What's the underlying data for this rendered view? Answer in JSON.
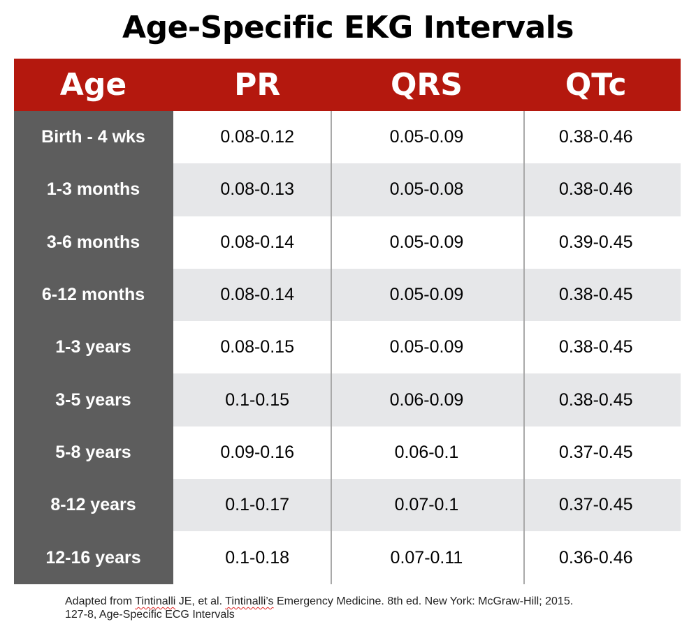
{
  "title": "Age-Specific EKG Intervals",
  "colors": {
    "header_bg": "#b4180e",
    "age_column_bg": "#5d5d5d",
    "alt_row_bg": "#e6e7e9",
    "divider": "#a9a9a9"
  },
  "table": {
    "headers": [
      "Age",
      "PR",
      "QRS",
      "QTc"
    ],
    "rows": [
      {
        "age": "Birth - 4 wks",
        "pr": "0.08-0.12",
        "qrs": "0.05-0.09",
        "qtc": "0.38-0.46"
      },
      {
        "age": "1-3 months",
        "pr": "0.08-0.13",
        "qrs": "0.05-0.08",
        "qtc": "0.38-0.46"
      },
      {
        "age": "3-6 months",
        "pr": "0.08-0.14",
        "qrs": "0.05-0.09",
        "qtc": "0.39-0.45"
      },
      {
        "age": "6-12 months",
        "pr": "0.08-0.14",
        "qrs": "0.05-0.09",
        "qtc": "0.38-0.45"
      },
      {
        "age": "1-3 years",
        "pr": "0.08-0.15",
        "qrs": "0.05-0.09",
        "qtc": "0.38-0.45"
      },
      {
        "age": "3-5 years",
        "pr": "0.1-0.15",
        "qrs": "0.06-0.09",
        "qtc": "0.38-0.45"
      },
      {
        "age": "5-8 years",
        "pr": "0.09-0.16",
        "qrs": "0.06-0.1",
        "qtc": "0.37-0.45"
      },
      {
        "age": "8-12 years",
        "pr": "0.1-0.17",
        "qrs": "0.07-0.1",
        "qtc": "0.37-0.45"
      },
      {
        "age": "12-16 years",
        "pr": "0.1-0.18",
        "qrs": "0.07-0.11",
        "qtc": "0.36-0.46"
      }
    ]
  },
  "footnote": {
    "part1": "Adapted from ",
    "author": "Tintinalli",
    "part2": " JE, et al. ",
    "book_author": "Tintinalli’s",
    "part3": " Emergency Medicine. 8th ed. New York: McGraw-Hill; 2015.",
    "line2": "127-8, Age-Specific ECG Intervals"
  }
}
